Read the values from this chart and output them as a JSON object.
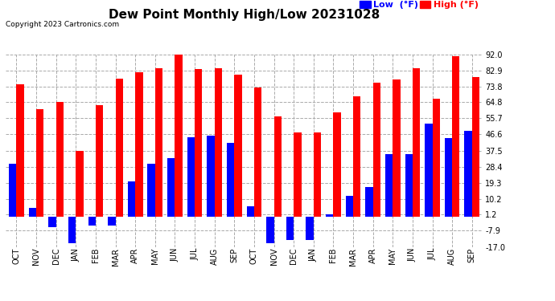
{
  "title": "Dew Point Monthly High/Low 20231028",
  "copyright": "Copyright 2023 Cartronics.com",
  "months": [
    "OCT",
    "NOV",
    "DEC",
    "JAN",
    "FEB",
    "MAR",
    "APR",
    "MAY",
    "JUN",
    "JUL",
    "AUG",
    "SEP",
    "OCT",
    "NOV",
    "DEC",
    "JAN",
    "FEB",
    "MAR",
    "APR",
    "MAY",
    "JUN",
    "JUL",
    "AUG",
    "SEP"
  ],
  "high_values": [
    75.0,
    61.0,
    65.0,
    37.5,
    63.0,
    78.0,
    82.0,
    84.0,
    92.0,
    83.5,
    84.0,
    80.5,
    73.0,
    57.0,
    47.5,
    47.5,
    59.0,
    68.0,
    76.0,
    77.5,
    84.0,
    67.0,
    91.0,
    79.0
  ],
  "low_values": [
    30.0,
    5.0,
    -6.0,
    -15.0,
    -5.0,
    -5.0,
    20.0,
    30.0,
    33.0,
    45.0,
    46.0,
    42.0,
    6.0,
    -15.0,
    -13.0,
    -13.0,
    1.5,
    12.0,
    17.0,
    35.5,
    35.5,
    52.5,
    44.5,
    48.5
  ],
  "high_color": "#ff0000",
  "low_color": "#0000ff",
  "bg_color": "#ffffff",
  "grid_color": "#aaaaaa",
  "yticks": [
    92.0,
    82.9,
    73.8,
    64.8,
    55.7,
    46.6,
    37.5,
    28.4,
    19.3,
    10.2,
    1.2,
    -7.9,
    -17.0
  ],
  "ymin": -17.0,
  "ymax": 92.0,
  "bar_width": 0.38,
  "title_fontsize": 11,
  "copyright_fontsize": 6.5,
  "legend_fontsize": 8,
  "tick_fontsize": 7
}
